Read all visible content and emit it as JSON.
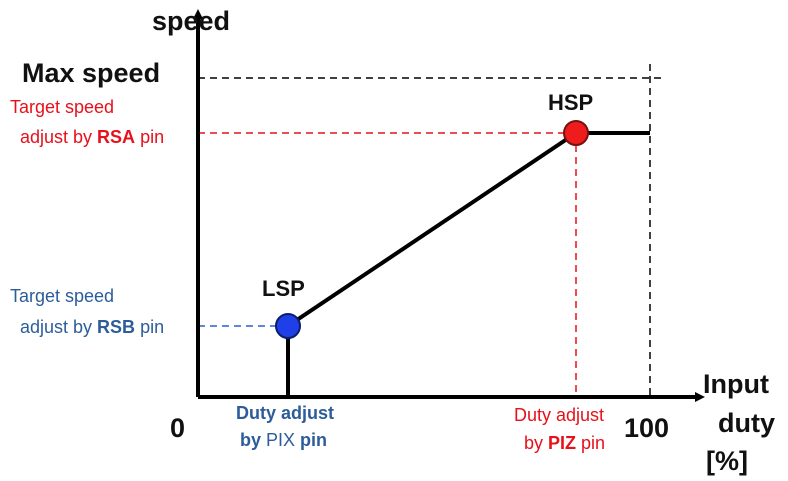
{
  "axes": {
    "y_label": "speed",
    "y_max_label": "Max speed",
    "origin_label": "0",
    "x_max_label": "100",
    "x_label": [
      "Input",
      "duty",
      "[%]"
    ]
  },
  "points": {
    "hsp": "HSP",
    "lsp": "LSP"
  },
  "annotations": {
    "rsa": {
      "line1": "Target speed",
      "line2": [
        "adjust by ",
        "RSA",
        " pin"
      ]
    },
    "rsb": {
      "line1": "Target speed",
      "line2": [
        "adjust by ",
        "RSB",
        " pin"
      ]
    },
    "pix": {
      "line1": "Duty adjust",
      "line2": [
        "by",
        " PIX ",
        "pin"
      ]
    },
    "piz": {
      "line1": "Duty adjust",
      "line2": [
        "by ",
        "PIZ",
        " pin"
      ]
    }
  }
}
